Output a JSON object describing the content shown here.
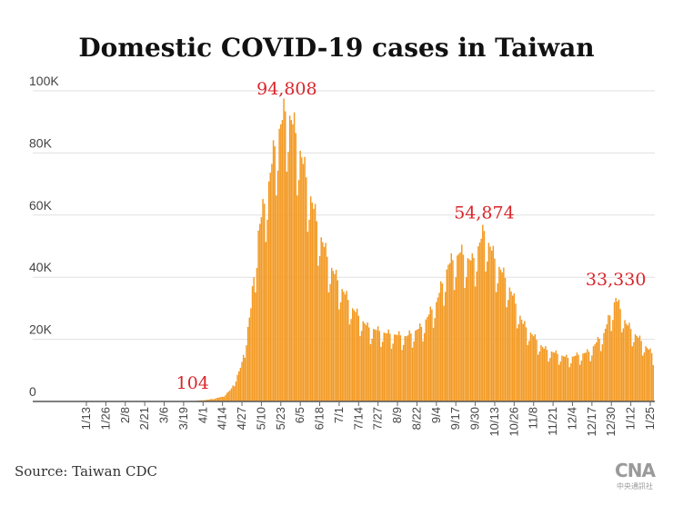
{
  "title": "Domestic COVID-19 cases in Taiwan",
  "source": "Source: Taiwan CDC",
  "logo": {
    "text": "CNA",
    "subtitle": "中央通訊社"
  },
  "colors": {
    "bar": "#f39a24",
    "annotation": "#d9252b",
    "grid": "#e0e0e0",
    "axis_text": "#444444"
  },
  "chart_data": {
    "type": "bar",
    "title": "Domestic COVID-19 cases in Taiwan",
    "xlabel": "",
    "ylabel": "",
    "ylim": [
      0,
      100000
    ],
    "yticks": [
      0,
      20000,
      40000,
      60000,
      80000,
      100000
    ],
    "ytick_labels": [
      "0",
      "20K",
      "40K",
      "60K",
      "80K",
      "100K"
    ],
    "grid": true,
    "xtick_labels": [
      "1/13",
      "1/26",
      "2/8",
      "2/21",
      "3/6",
      "3/19",
      "4/1",
      "4/14",
      "4/27",
      "5/10",
      "5/23",
      "6/5",
      "6/18",
      "7/1",
      "7/14",
      "7/27",
      "8/9",
      "8/22",
      "9/4",
      "9/17",
      "9/30",
      "10/13",
      "10/26",
      "11/8",
      "11/21",
      "12/4",
      "12/17",
      "12/30",
      "1/12",
      "1/25"
    ],
    "series": [
      {
        "name": "",
        "points": [
          {
            "x": "1/1",
            "y": 30
          },
          {
            "x": "3/1",
            "y": 60
          },
          {
            "x": "3/25",
            "y": 104
          },
          {
            "x": "4/5",
            "y": 600
          },
          {
            "x": "4/14",
            "y": 1500
          },
          {
            "x": "4/20",
            "y": 4000
          },
          {
            "x": "4/27",
            "y": 12000
          },
          {
            "x": "5/3",
            "y": 30000
          },
          {
            "x": "5/8",
            "y": 55000
          },
          {
            "x": "5/14",
            "y": 68000
          },
          {
            "x": "5/20",
            "y": 85000
          },
          {
            "x": "5/27",
            "y": 94808
          },
          {
            "x": "6/3",
            "y": 85000
          },
          {
            "x": "6/10",
            "y": 70000
          },
          {
            "x": "6/17",
            "y": 56000
          },
          {
            "x": "6/24",
            "y": 45000
          },
          {
            "x": "7/1",
            "y": 38000
          },
          {
            "x": "7/10",
            "y": 30000
          },
          {
            "x": "7/20",
            "y": 24000
          },
          {
            "x": "8/1",
            "y": 22000
          },
          {
            "x": "8/15",
            "y": 21000
          },
          {
            "x": "8/25",
            "y": 24000
          },
          {
            "x": "9/4",
            "y": 32000
          },
          {
            "x": "9/12",
            "y": 44000
          },
          {
            "x": "9/20",
            "y": 48000
          },
          {
            "x": "9/28",
            "y": 45000
          },
          {
            "x": "10/6",
            "y": 54874
          },
          {
            "x": "10/13",
            "y": 46000
          },
          {
            "x": "10/22",
            "y": 38000
          },
          {
            "x": "11/1",
            "y": 25000
          },
          {
            "x": "11/15",
            "y": 17000
          },
          {
            "x": "12/1",
            "y": 14000
          },
          {
            "x": "12/15",
            "y": 16000
          },
          {
            "x": "12/25",
            "y": 22000
          },
          {
            "x": "1/2",
            "y": 33330
          },
          {
            "x": "1/9",
            "y": 25000
          },
          {
            "x": "1/18",
            "y": 20000
          },
          {
            "x": "1/27",
            "y": 15000
          }
        ]
      }
    ],
    "annotations": [
      {
        "x": "3/25",
        "text": "104"
      },
      {
        "x": "5/27",
        "text": "94,808"
      },
      {
        "x": "10/6",
        "text": "54,874"
      },
      {
        "x": "1/2",
        "text": "33,330"
      }
    ]
  }
}
